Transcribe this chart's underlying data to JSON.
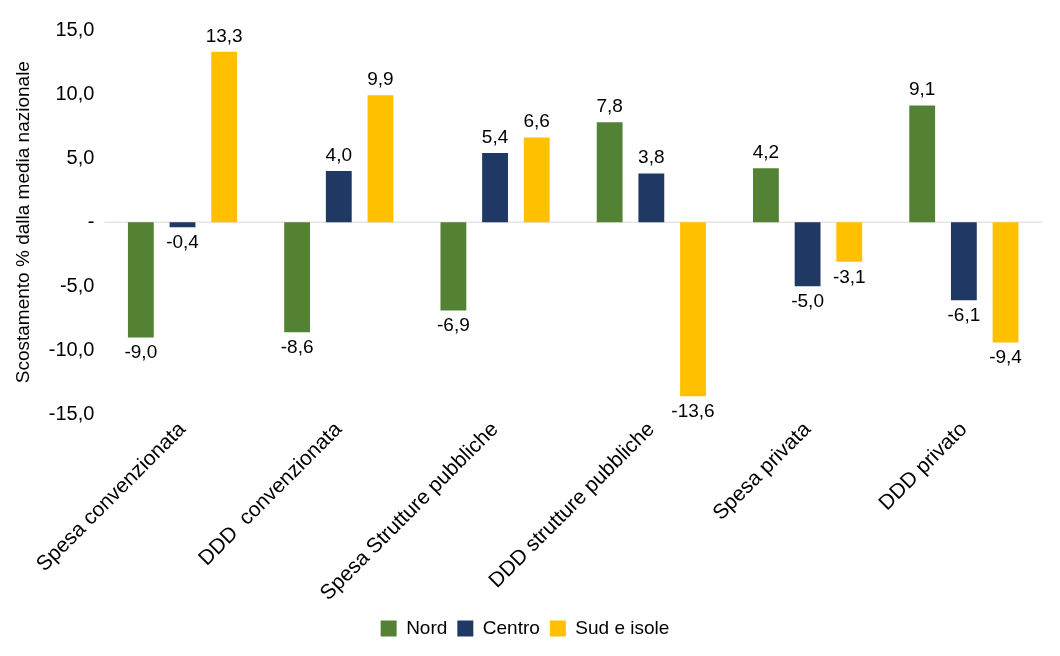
{
  "chart_data": {
    "type": "bar",
    "ylabel": "Scostamento % dalla media nazionale",
    "categories": [
      "Spesa convenzionata",
      "DDD  convenzionata",
      "Spesa Strutture pubbliche",
      "DDD strutture pubbliche",
      "Spesa privata",
      "DDD privato"
    ],
    "series": [
      {
        "name": "Nord",
        "color": "#548235",
        "values": [
          -9.0,
          -8.6,
          -6.9,
          7.8,
          4.2,
          9.1
        ],
        "value_labels": [
          "-9,0",
          "-8,6",
          "-6,9",
          "7,8",
          "4,2",
          "9,1"
        ]
      },
      {
        "name": "Centro",
        "color": "#203864",
        "values": [
          -0.4,
          4.0,
          5.4,
          3.8,
          -5.0,
          -6.1
        ],
        "value_labels": [
          "-0,4",
          "4,0",
          "5,4",
          "3,8",
          "-5,0",
          "-6,1"
        ]
      },
      {
        "name": "Sud e isole",
        "color": "#ffc000",
        "values": [
          13.3,
          9.9,
          6.6,
          -13.6,
          -3.1,
          -9.4
        ],
        "value_labels": [
          "13,3",
          "9,9",
          "6,6",
          "-13,6",
          "-3,1",
          "-9,4"
        ]
      }
    ],
    "ylim": [
      -15,
      15
    ],
    "yticks": [
      {
        "value": -15,
        "label": "-15,0"
      },
      {
        "value": -10,
        "label": "-10,0"
      },
      {
        "value": -5,
        "label": "-5,0"
      },
      {
        "value": 0,
        "label": "-"
      },
      {
        "value": 5,
        "label": "5,0"
      },
      {
        "value": 10,
        "label": "10,0"
      },
      {
        "value": 15,
        "label": "15,0"
      }
    ],
    "grid": false,
    "ref_lines": [
      {
        "axis": "y",
        "value": 0,
        "color": "#d9d9d9"
      }
    ],
    "legend": "bottom"
  }
}
